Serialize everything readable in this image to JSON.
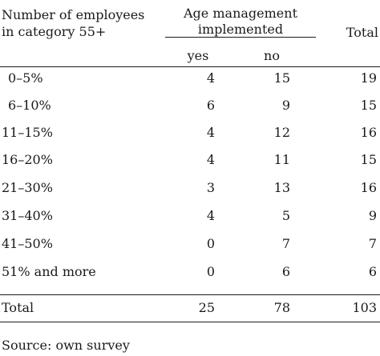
{
  "table": {
    "header": {
      "category_line1": "Number of employees",
      "category_line2": "in category 55+",
      "group_line1": "Age management",
      "group_line2": "implemented",
      "yes": "yes",
      "no": "no",
      "total": "Total"
    },
    "rows": [
      {
        "category": "0–5%",
        "yes": "4",
        "no": "15",
        "total": "19"
      },
      {
        "category": "6–10%",
        "yes": "6",
        "no": "9",
        "total": "15"
      },
      {
        "category": "11–15%",
        "yes": "4",
        "no": "12",
        "total": "16"
      },
      {
        "category": "16–20%",
        "yes": "4",
        "no": "11",
        "total": "15"
      },
      {
        "category": "21–30%",
        "yes": "3",
        "no": "13",
        "total": "16"
      },
      {
        "category": "31–40%",
        "yes": "4",
        "no": "5",
        "total": "9"
      },
      {
        "category": "41–50%",
        "yes": "0",
        "no": "7",
        "total": "7"
      },
      {
        "category": "51% and more",
        "yes": "0",
        "no": "6",
        "total": "6"
      }
    ],
    "totals": {
      "label": "Total",
      "yes": "25",
      "no": "78",
      "total": "103"
    }
  },
  "source": "Source: own survey"
}
